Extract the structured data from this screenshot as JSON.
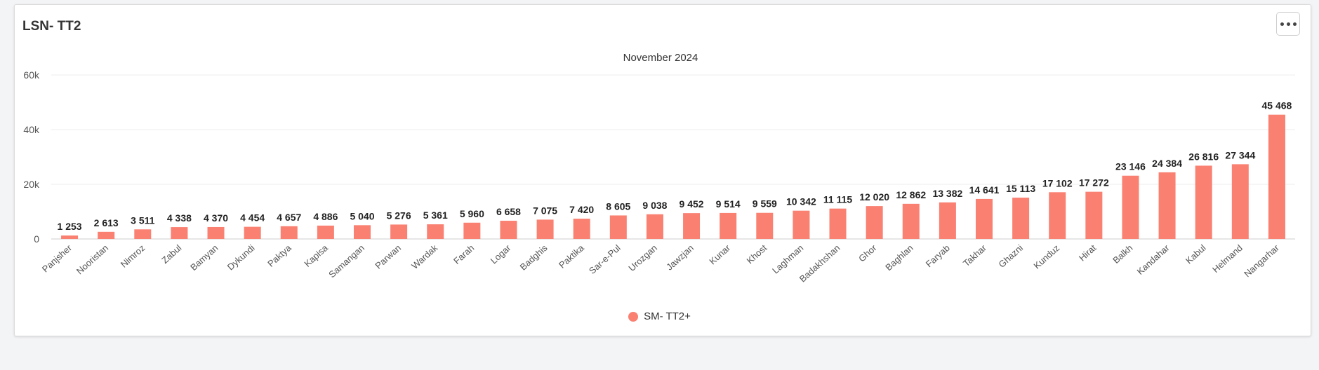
{
  "card": {
    "title": "LSN- TT2"
  },
  "chart_data": {
    "type": "bar",
    "subtitle": "November 2024",
    "categories": [
      "Panjsher",
      "Nooristan",
      "Nimroz",
      "Zabul",
      "Bamyan",
      "Dykundi",
      "Paktya",
      "Kapisa",
      "Samangan",
      "Parwan",
      "Wardak",
      "Farah",
      "Logar",
      "Badghis",
      "Paktika",
      "Sar-e-Pul",
      "Urozgan",
      "Jawzjan",
      "Kunar",
      "Khost",
      "Laghman",
      "Badakhshan",
      "Ghor",
      "Baghlan",
      "Faryab",
      "Takhar",
      "Ghazni",
      "Kunduz",
      "Hirat",
      "Balkh",
      "Kandahar",
      "Kabul",
      "Helmand",
      "Nangarhar"
    ],
    "series": [
      {
        "name": "SM- TT2+",
        "values": [
          1253,
          2613,
          3511,
          4338,
          4370,
          4454,
          4657,
          4886,
          5040,
          5276,
          5361,
          5960,
          6658,
          7075,
          7420,
          8605,
          9038,
          9452,
          9514,
          9559,
          10342,
          11115,
          12020,
          12862,
          13382,
          14641,
          15113,
          17102,
          17272,
          23146,
          24384,
          26816,
          27344,
          45468
        ],
        "labels": [
          "1 253",
          "2 613",
          "3 511",
          "4 338",
          "4 370",
          "4 454",
          "4 657",
          "4 886",
          "5 040",
          "5 276",
          "5 361",
          "5 960",
          "6 658",
          "7 075",
          "7 420",
          "8 605",
          "9 038",
          "9 452",
          "9 514",
          "9 559",
          "10 342",
          "11 115",
          "12 020",
          "12 862",
          "13 382",
          "14 641",
          "15 113",
          "17 102",
          "17 272",
          "23 146",
          "24 384",
          "26 816",
          "27 344",
          "45 468"
        ]
      }
    ],
    "yticks": [
      0,
      20000,
      40000,
      60000
    ],
    "ytick_labels": [
      "0",
      "20k",
      "40k",
      "60k"
    ],
    "ylim": [
      0,
      60000
    ],
    "grid": true,
    "legend_position": "bottom-center",
    "colors": {
      "bar": "#fa8072",
      "grid": "#ececec",
      "axis": "#cccccc"
    }
  }
}
